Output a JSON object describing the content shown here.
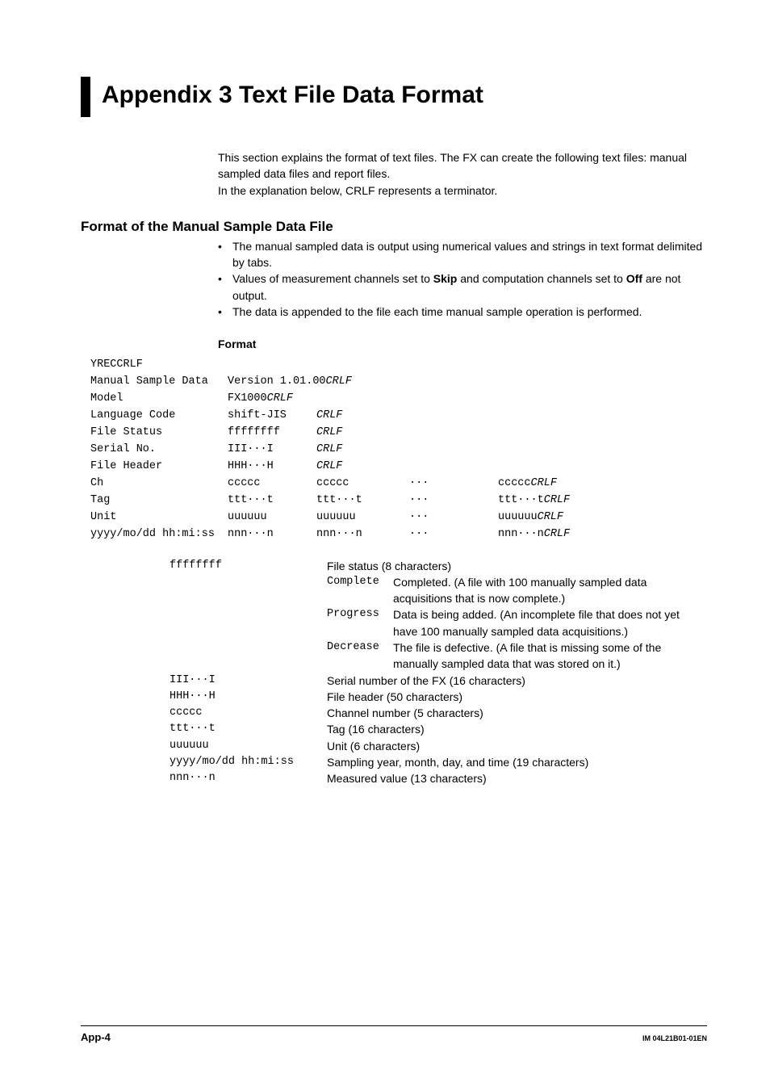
{
  "title": "Appendix 3   Text File Data Format",
  "intro": [
    "This section explains the format of text files. The FX can create the following text files: manual sampled data files and report files.",
    "In the explanation below, CRLF represents a terminator."
  ],
  "section_heading": "Format of the Manual Sample Data File",
  "bullets": [
    "The manual sampled data is output using numerical values and strings in text format delimited by tabs.",
    [
      "Values of measurement channels set to ",
      "Skip",
      " and computation channels set to ",
      "Off",
      " are not output."
    ],
    "The data is appended to the file each time manual sample operation is performed."
  ],
  "format_heading": "Format",
  "mono": {
    "line0": "YRECCRLF",
    "rows": [
      {
        "label": "Manual Sample Data",
        "v1": "Version 1.01.00",
        "crlf_after_v1": true
      },
      {
        "label": "Model",
        "v1": "FX1000",
        "crlf_after_v1": true
      },
      {
        "label": "Language Code",
        "v1": "shift-JIS",
        "crlf_col2": true
      },
      {
        "label": "File Status",
        "v1": "ffffffff",
        "crlf_col2": true
      },
      {
        "label": "Serial No.",
        "v1": "III···I",
        "crlf_col2": true
      },
      {
        "label": "File Header",
        "v1": "HHH···H",
        "crlf_col2": true
      }
    ],
    "grid": [
      {
        "label": "Ch",
        "a": "ccccc",
        "b": "ccccc",
        "dots": "···",
        "end": "ccccc",
        "crlf": true
      },
      {
        "label": "Tag",
        "a": "ttt···t",
        "b": "ttt···t",
        "dots": "···",
        "end": "ttt···t",
        "crlf": true
      },
      {
        "label": "Unit",
        "a": "uuuuuu",
        "b": "uuuuuu",
        "dots": "···",
        "end": "uuuuuu",
        "crlf": true
      },
      {
        "label": "yyyy/mo/dd hh:mi:ss",
        "a": "nnn···n",
        "b": "nnn···n",
        "dots": "···",
        "end": "nnn···n",
        "crlf": true
      }
    ]
  },
  "desc": {
    "file_status": {
      "key": "ffffffff",
      "label": "File status (8 characters)",
      "items": [
        {
          "k": "Complete",
          "v": "Completed. (A file with 100 manually sampled data acquisitions that is now complete.)"
        },
        {
          "k": "Progress",
          "v": "Data is being added. (An incomplete file that does not yet have 100 manually sampled data acquisitions.)"
        },
        {
          "k": "Decrease",
          "v": "The file is defective. (A file that is missing some of the manually sampled data that was stored on it.)"
        }
      ]
    },
    "rest": [
      {
        "k": "III···I",
        "v": "Serial number of the FX (16 characters)"
      },
      {
        "k": "HHH···H",
        "v": "File header (50 characters)"
      },
      {
        "k": "ccccc",
        "v": "Channel number (5 characters)"
      },
      {
        "k": "ttt···t",
        "v": "Tag (16 characters)"
      },
      {
        "k": "uuuuuu",
        "v": "Unit (6 characters)"
      },
      {
        "k": "yyyy/mo/dd hh:mi:ss",
        "v": "Sampling year, month, day, and time (19 characters)"
      },
      {
        "k": "nnn···n",
        "v": "Measured value (13 characters)"
      }
    ]
  },
  "footer": {
    "page": "App-4",
    "doc": "IM 04L21B01-01EN"
  }
}
